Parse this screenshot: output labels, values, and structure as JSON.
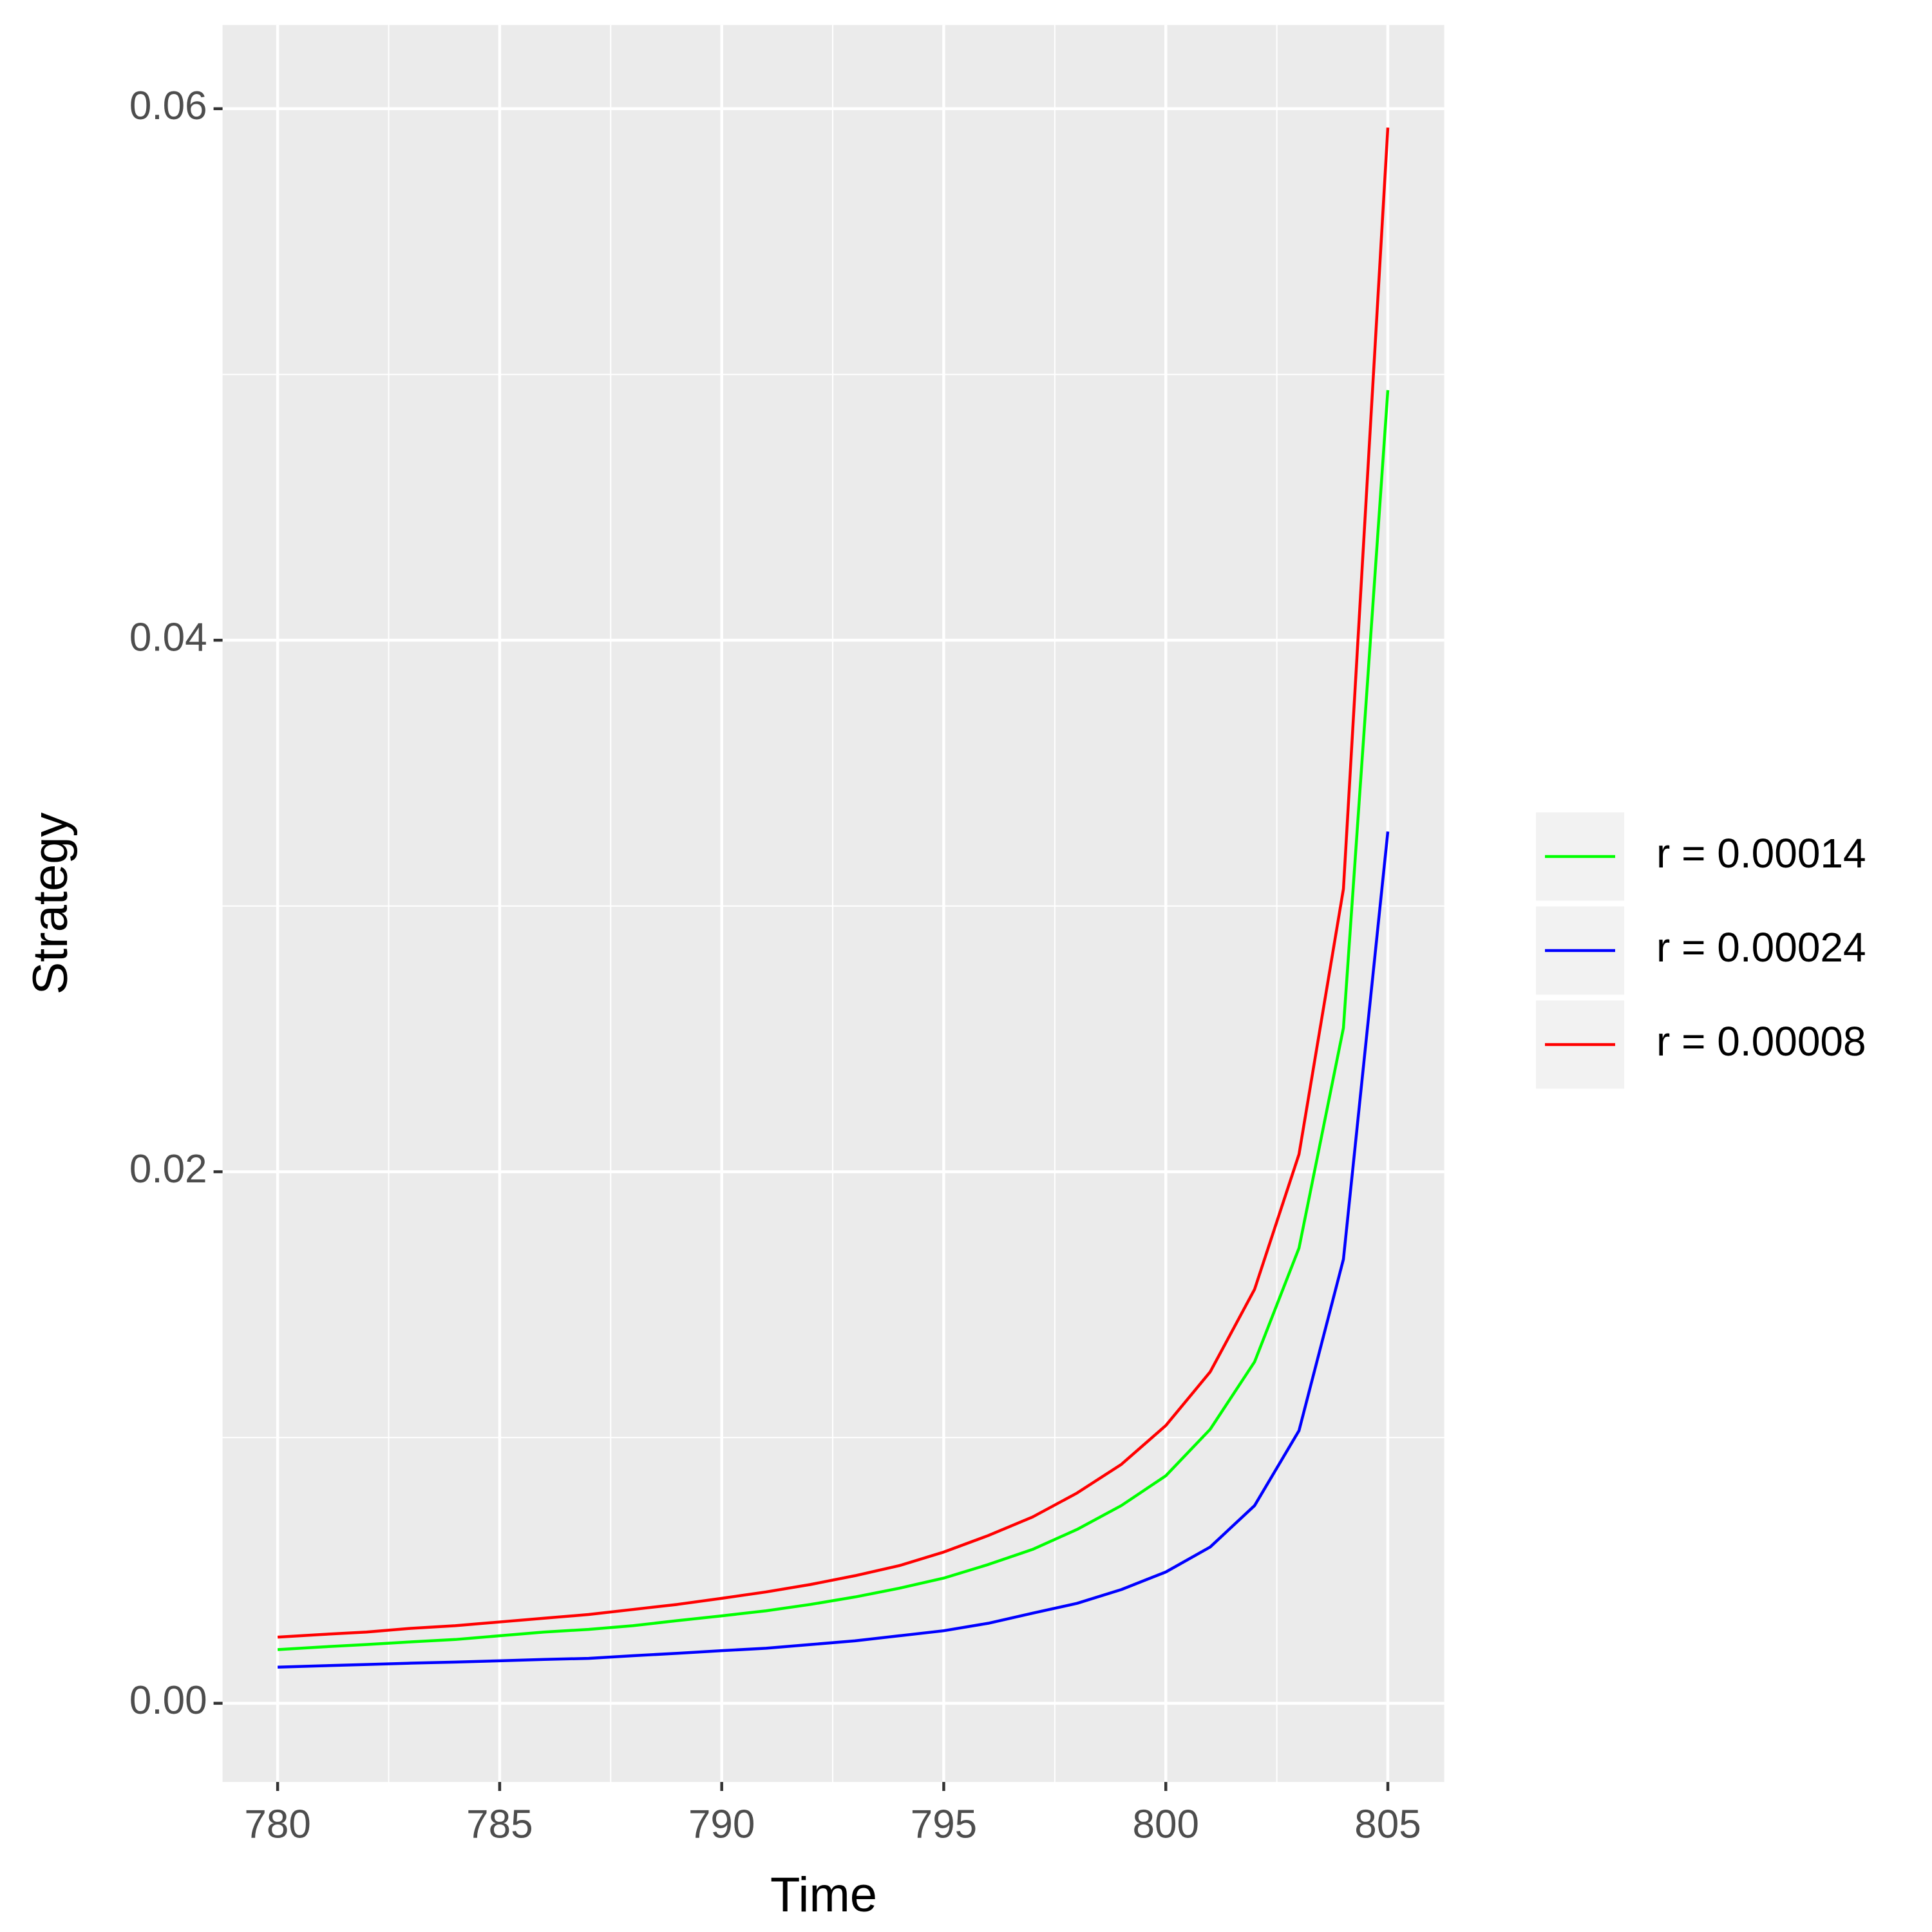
{
  "chart_data": {
    "type": "line",
    "x_label": "Time",
    "y_label": "Strategy",
    "x": [
      780,
      781,
      782,
      783,
      784,
      785,
      786,
      787,
      788,
      789,
      790,
      791,
      792,
      793,
      794,
      795,
      796,
      797,
      798,
      799,
      800,
      801,
      802,
      803,
      804,
      805
    ],
    "series": [
      {
        "name": "r = 0.00014",
        "color": "#00ff00",
        "values": [
          0.00202,
          0.00212,
          0.00221,
          0.00231,
          0.0024,
          0.00254,
          0.00268,
          0.00278,
          0.00292,
          0.00311,
          0.00329,
          0.00348,
          0.00372,
          0.004,
          0.00433,
          0.00471,
          0.00522,
          0.00579,
          0.00654,
          0.00744,
          0.00856,
          0.01031,
          0.01285,
          0.01713,
          0.02541,
          0.04941
        ]
      },
      {
        "name": "r = 0.00024",
        "color": "#0000ff",
        "values": [
          0.00136,
          0.00141,
          0.00146,
          0.00151,
          0.00155,
          0.0016,
          0.00165,
          0.00169,
          0.00179,
          0.00188,
          0.00198,
          0.00207,
          0.00221,
          0.00235,
          0.00254,
          0.00273,
          0.00301,
          0.00339,
          0.00376,
          0.00428,
          0.00494,
          0.00588,
          0.00744,
          0.01026,
          0.01671,
          0.0328
        ]
      },
      {
        "name": "r = 0.00008",
        "color": "#ff0000",
        "values": [
          0.00249,
          0.00259,
          0.00268,
          0.00282,
          0.00292,
          0.00306,
          0.0032,
          0.00334,
          0.00353,
          0.00372,
          0.00395,
          0.00419,
          0.00447,
          0.0048,
          0.00518,
          0.00569,
          0.00631,
          0.00701,
          0.00791,
          0.00899,
          0.01045,
          0.01247,
          0.01558,
          0.02066,
          0.03064,
          0.05929
        ]
      }
    ],
    "xlim": [
      778.76,
      806.27
    ],
    "xticks": [
      780,
      785,
      790,
      795,
      800,
      805
    ],
    "ylim": [
      -0.00296,
      0.06315
    ],
    "yticks": [
      {
        "value": 0,
        "label": "0.00"
      },
      0.02,
      0.04,
      0.06
    ],
    "grid": true,
    "minor_grid": true,
    "legend": "right"
  }
}
